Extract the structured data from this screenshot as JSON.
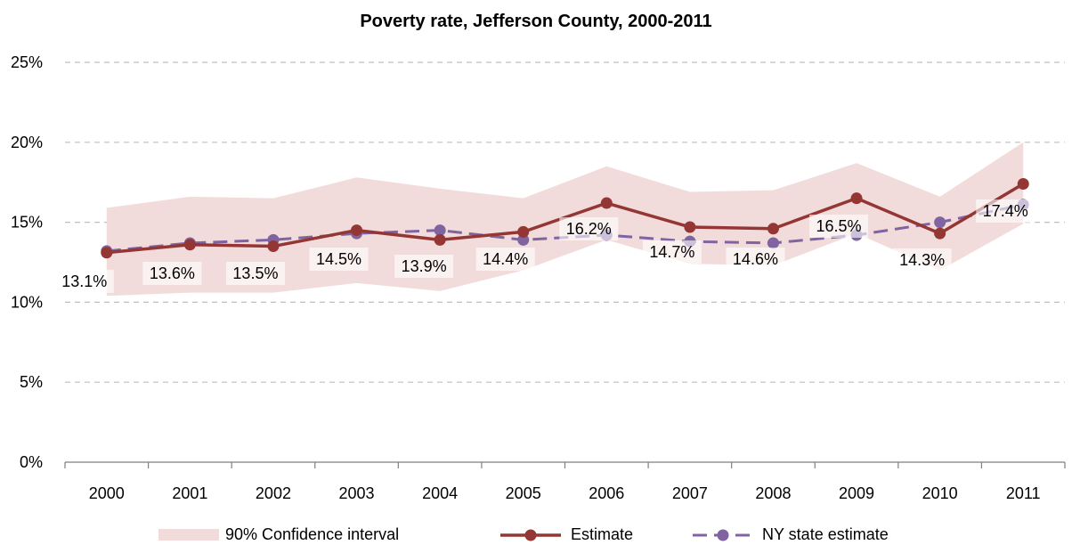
{
  "chart_data": {
    "type": "line",
    "title": "Poverty rate, Jefferson County, 2000-2011",
    "categories": [
      "2000",
      "2001",
      "2002",
      "2003",
      "2004",
      "2005",
      "2006",
      "2007",
      "2008",
      "2009",
      "2010",
      "2011"
    ],
    "y_ticks": [
      "0%",
      "5%",
      "10%",
      "15%",
      "20%",
      "25%"
    ],
    "ylim": [
      0,
      25
    ],
    "grid": "horizontal dashed",
    "legend_position": "bottom",
    "series": [
      {
        "name": "Estimate",
        "values": [
          13.1,
          13.6,
          13.5,
          14.5,
          13.9,
          14.4,
          16.2,
          14.7,
          14.6,
          16.5,
          14.3,
          17.4
        ],
        "labels": [
          "13.1%",
          "13.6%",
          "13.5%",
          "14.5%",
          "13.9%",
          "14.4%",
          "16.2%",
          "14.7%",
          "14.6%",
          "16.5%",
          "14.3%",
          "17.4%"
        ],
        "color": "#943634",
        "style": "solid"
      },
      {
        "name": "NY state estimate",
        "values": [
          13.2,
          13.7,
          13.9,
          14.3,
          14.5,
          13.9,
          14.2,
          13.8,
          13.7,
          14.2,
          15.0,
          16.1
        ],
        "color": "#8064A2",
        "style": "dashed"
      }
    ],
    "confidence_interval": {
      "name": "90% Confidence interval",
      "lower": [
        10.4,
        10.6,
        10.6,
        11.2,
        10.7,
        12.0,
        13.9,
        12.4,
        12.3,
        14.3,
        12.0,
        14.9
      ],
      "upper": [
        15.9,
        16.6,
        16.5,
        17.8,
        17.1,
        16.5,
        18.5,
        16.9,
        17.0,
        18.7,
        16.6,
        20.0
      ],
      "color": "#F2DCDB"
    }
  }
}
